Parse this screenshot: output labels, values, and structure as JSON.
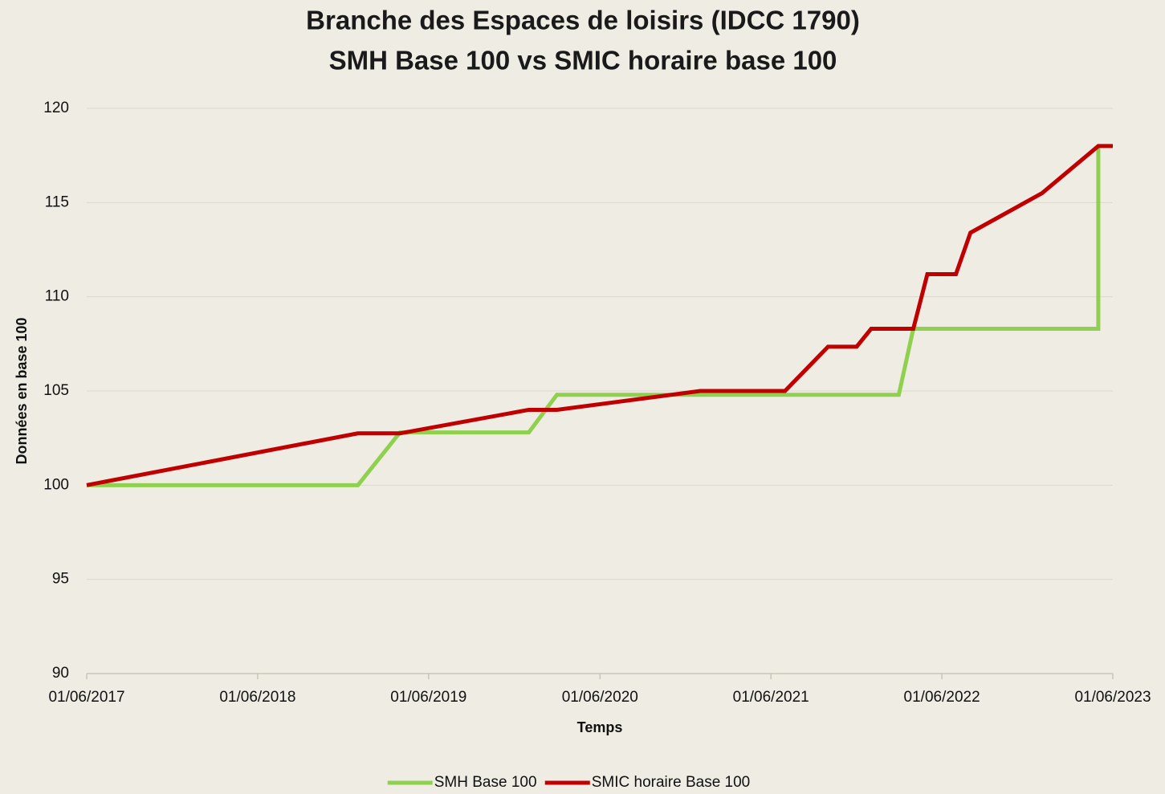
{
  "chart_data": {
    "type": "line",
    "title": "Branche des Espaces de loisirs (IDCC 1790)",
    "subtitle": "SMH Base 100 vs SMIC horaire base 100",
    "x_label": "Temps",
    "y_label": "Données en base 100",
    "xlim": [
      "01/06/2017",
      "01/06/2023"
    ],
    "xticks": [
      "01/06/2017",
      "01/06/2018",
      "01/06/2019",
      "01/06/2020",
      "01/06/2021",
      "01/06/2022",
      "01/06/2023"
    ],
    "ylim": [
      90,
      120
    ],
    "yticks": [
      90,
      95,
      100,
      105,
      110,
      115,
      120
    ],
    "grid": true,
    "legend": "bottom",
    "series": [
      {
        "name": "SMH Base 100",
        "color": "#8fd14f",
        "x": [
          "01/06/2017",
          "01/01/2019",
          "01/04/2019",
          "01/01/2020",
          "01/03/2020",
          "01/03/2022",
          "01/04/2022",
          "01/05/2023",
          "01/05/2023"
        ],
        "values": [
          100,
          100,
          102.8,
          102.8,
          104.8,
          104.8,
          108.3,
          108.3,
          118
        ]
      },
      {
        "name": "SMIC horaire Base 100",
        "color": "#c00000",
        "x": [
          "01/06/2017",
          "01/01/2019",
          "01/04/2019",
          "01/01/2020",
          "01/03/2020",
          "01/01/2021",
          "01/07/2021",
          "01/10/2021",
          "01/12/2021",
          "01/01/2022",
          "01/04/2022",
          "01/05/2022",
          "01/07/2022",
          "01/08/2022",
          "01/01/2023",
          "01/05/2023",
          "01/06/2023"
        ],
        "values": [
          100,
          102.75,
          102.75,
          104,
          104,
          105,
          105,
          107.35,
          107.35,
          108.3,
          108.3,
          111.2,
          111.2,
          113.4,
          115.5,
          118,
          118
        ]
      }
    ]
  }
}
